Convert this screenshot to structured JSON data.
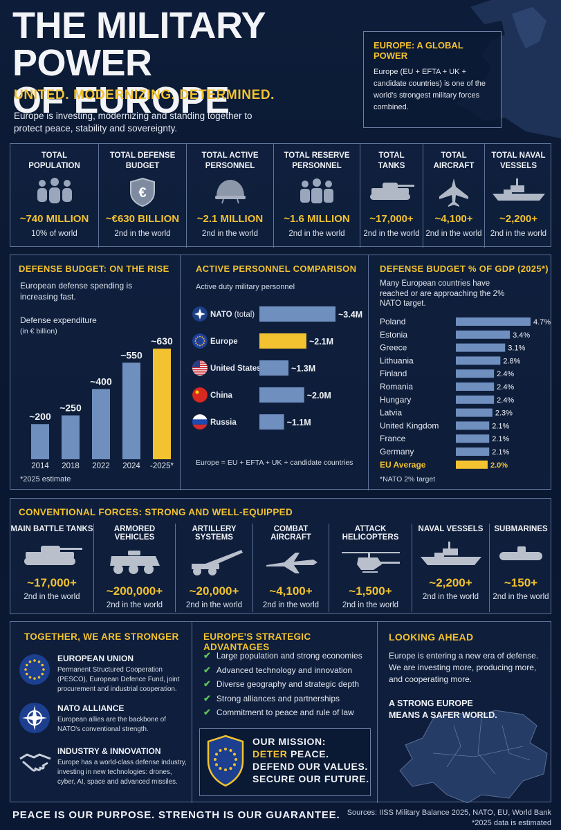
{
  "header": {
    "title_line1": "THE MILITARY POWER",
    "title_line2": "OF EUROPE",
    "tagline": "UNITED. MODERNIZING. DETERMINED.",
    "intro": "Europe is investing, modernizing and standing together to protect peace, stability and sovereignty."
  },
  "global_power": {
    "title": "EUROPE: A GLOBAL POWER",
    "body": "Europe (EU + EFTA + UK + candidate countries) is one of the world's strongest military forces combined."
  },
  "stats": [
    {
      "label": "TOTAL POPULATION",
      "value": "~740 MILLION",
      "sub": "10% of world",
      "icon": "people-icon"
    },
    {
      "label": "TOTAL DEFENSE BUDGET",
      "value": "~€630 BILLION",
      "sub": "2nd in the world",
      "icon": "euro-shield-icon"
    },
    {
      "label": "TOTAL ACTIVE PERSONNEL",
      "value": "~2.1 MILLION",
      "sub": "2nd in the world",
      "icon": "helmet-icon"
    },
    {
      "label": "TOTAL RESERVE PERSONNEL",
      "value": "~1.6 MILLION",
      "sub": "2nd in the world",
      "icon": "soldiers-icon"
    },
    {
      "label": "TOTAL TANKS",
      "value": "~17,000+",
      "sub": "2nd in the world",
      "icon": "tank-icon"
    },
    {
      "label": "TOTAL AIRCRAFT",
      "value": "~4,100+",
      "sub": "2nd in the world",
      "icon": "jet-icon"
    },
    {
      "label": "TOTAL NAVAL VESSELS",
      "value": "~2,200+",
      "sub": "2nd in the world",
      "icon": "ship-icon"
    }
  ],
  "budget": {
    "title": "DEFENSE BUDGET: ON THE RISE",
    "body": "European defense spending is increasing fast.",
    "chart_label": "Defense expenditure",
    "chart_unit": "(in € billion)",
    "note": "*2025 estimate"
  },
  "personnel": {
    "title": "ACTIVE PERSONNEL COMPARISON",
    "subtitle": "Active duty military personnel",
    "note": "Europe = EU + EFTA + UK + candidate countries"
  },
  "gdp": {
    "title": "DEFENSE BUDGET % OF GDP (2025*)",
    "body": "Many European countries have reached or are approaching the 2% NATO target.",
    "note": "*NATO 2% target"
  },
  "chart_data": [
    {
      "type": "bar",
      "categories": [
        "2014",
        "2018",
        "2022",
        "2024",
        "-2025*"
      ],
      "values": [
        200,
        250,
        400,
        550,
        630
      ],
      "data_labels": [
        "~200",
        "~250",
        "~400",
        "~550",
        "~630"
      ],
      "highlight_index": 4,
      "ylim": [
        0,
        650
      ],
      "colors": {
        "bar": "#6f8fbf",
        "highlight": "#f2c230"
      }
    },
    {
      "type": "bar",
      "orientation": "horizontal",
      "categories": [
        "NATO (total)",
        "Europe",
        "United States",
        "China",
        "Russia"
      ],
      "values": [
        3.4,
        2.1,
        1.3,
        2.0,
        1.1
      ],
      "data_labels": [
        "~3.4M",
        "~2.1M",
        "~1.3M",
        "~2.0M",
        "~1.1M"
      ],
      "highlight_index": 1,
      "xlim": [
        0,
        3.4
      ],
      "icons": [
        "nato-flag-icon",
        "eu-flag-icon",
        "us-flag-icon",
        "china-flag-icon",
        "russia-flag-icon"
      ]
    },
    {
      "type": "bar",
      "orientation": "horizontal",
      "categories": [
        "Poland",
        "Estonia",
        "Greece",
        "Lithuania",
        "Finland",
        "Romania",
        "Hungary",
        "Latvia",
        "United Kingdom",
        "France",
        "Germany",
        "EU Average"
      ],
      "values": [
        4.7,
        3.4,
        3.1,
        2.8,
        2.4,
        2.4,
        2.4,
        2.3,
        2.1,
        2.1,
        2.1,
        2.0
      ],
      "data_labels": [
        "4.7%",
        "3.4%",
        "3.1%",
        "2.8%",
        "2.4%",
        "2.4%",
        "2.4%",
        "2.3%",
        "2.1%",
        "2.1%",
        "2.1%",
        "2.0%"
      ],
      "highlight_index": 11,
      "xlim": [
        0,
        4.7
      ]
    }
  ],
  "forces": {
    "title": "CONVENTIONAL FORCES: STRONG AND WELL-EQUIPPED",
    "items": [
      {
        "label": "MAIN BATTLE TANKS",
        "value": "~17,000+",
        "sub": "2nd in the world",
        "icon": "tank-icon"
      },
      {
        "label": "ARMORED VEHICLES",
        "value": "~200,000+",
        "sub": "2nd in the world",
        "icon": "armored-vehicle-icon"
      },
      {
        "label": "ARTILLERY SYSTEMS",
        "value": "~20,000+",
        "sub": "2nd in the world",
        "icon": "artillery-icon"
      },
      {
        "label": "COMBAT AIRCRAFT",
        "value": "~4,100+",
        "sub": "2nd in the world",
        "icon": "fighter-jet-icon"
      },
      {
        "label": "ATTACK HELICOPTERS",
        "value": "~1,500+",
        "sub": "2nd in the world",
        "icon": "helicopter-icon"
      },
      {
        "label": "NAVAL VESSELS",
        "value": "~2,200+",
        "sub": "2nd in the world",
        "icon": "warship-icon"
      },
      {
        "label": "SUBMARINES",
        "value": "~150+",
        "sub": "2nd in the world",
        "icon": "submarine-icon"
      }
    ]
  },
  "together": {
    "title": "TOGETHER, WE ARE STRONGER",
    "orgs": [
      {
        "title": "EUROPEAN UNION",
        "body": "Permanent Structured Cooperation (PESCO), European Defence Fund, joint procurement and industrial cooperation.",
        "icon": "eu-circle-icon"
      },
      {
        "title": "NATO ALLIANCE",
        "body": "European allies are the backbone of NATO's conventional strength.",
        "icon": "nato-circle-icon"
      },
      {
        "title": "INDUSTRY & INNOVATION",
        "body": "Europe has a world-class defense industry, investing in new technologies: drones, cyber, AI, space and advanced missiles.",
        "icon": "handshake-icon"
      }
    ]
  },
  "advantages": {
    "title": "EUROPE'S STRATEGIC ADVANTAGES",
    "items": [
      "Large population and strong economies",
      "Advanced technology and innovation",
      "Diverse geography and strategic depth",
      "Strong alliances and partnerships",
      "Commitment to peace and rule of law"
    ]
  },
  "mission": {
    "label": "OUR MISSION:",
    "line1_highlight": "DETER",
    "line1_rest": " PEACE.",
    "line2": "DEFEND OUR VALUES.",
    "line3": "SECURE OUR FUTURE."
  },
  "looking_ahead": {
    "title": "LOOKING AHEAD",
    "body": "Europe is entering a new era of defense. We are investing more, producing more, and cooperating more.",
    "slogan": "A STRONG EUROPE MEANS A SAFER WORLD."
  },
  "footer": {
    "slogan": "PEACE IS OUR PURPOSE. STRENGTH IS OUR GUARANTEE.",
    "sources": "Sources: IISS Military Balance 2025, NATO, EU, World Bank",
    "note": "*2025 data is estimated"
  }
}
